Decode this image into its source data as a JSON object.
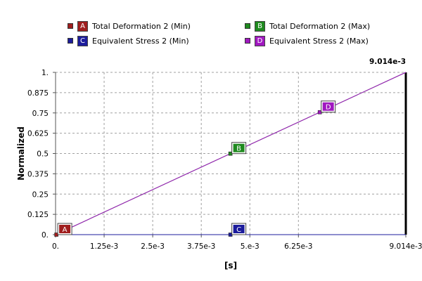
{
  "legend": {
    "items": [
      {
        "letter": "A",
        "label": "Total Deformation 2 (Min)",
        "color": "#a01e1e"
      },
      {
        "letter": "B",
        "label": "Total Deformation 2 (Max)",
        "color": "#1f8a1f"
      },
      {
        "letter": "C",
        "label": "Equivalent Stress 2 (Min)",
        "color": "#1c1c9c"
      },
      {
        "letter": "D",
        "label": "Equivalent Stress 2 (Max)",
        "color": "#a018c0"
      }
    ]
  },
  "chart_data": {
    "type": "line",
    "xlabel": "[s]",
    "ylabel": "Normalized",
    "xlim": [
      0,
      0.009014
    ],
    "ylim": [
      0,
      1
    ],
    "x_ticks": [
      0,
      0.00125,
      0.0025,
      0.00375,
      0.005,
      0.00625,
      0.009014
    ],
    "x_tick_labels": [
      "0.",
      "1.25e-3",
      "2.5e-3",
      "3.75e-3",
      "5.e-3",
      "6.25e-3",
      "9.014e-3"
    ],
    "y_ticks": [
      0,
      0.125,
      0.25,
      0.375,
      0.5,
      0.625,
      0.75,
      0.875,
      1
    ],
    "y_tick_labels": [
      "0.",
      "0.125",
      "0.25",
      "0.375",
      "0.5",
      "0.625",
      "0.75",
      "0.875",
      "1."
    ],
    "grid": true,
    "cursor": {
      "x": 0.009014,
      "label": "9.014e-3"
    },
    "series": [
      {
        "letter": "A",
        "color": "#a01e1e",
        "x": [
          0,
          0.009014
        ],
        "y": [
          0,
          0
        ],
        "marker_x": 2e-05
      },
      {
        "letter": "B",
        "color": "#1f8a1f",
        "x": [
          0,
          0.009014
        ],
        "y": [
          0,
          1
        ],
        "marker_x": 0.0045
      },
      {
        "letter": "C",
        "color": "#1c1c9c",
        "x": [
          0,
          0.009014
        ],
        "y": [
          0,
          0
        ],
        "marker_x": 0.0045
      },
      {
        "letter": "D",
        "color": "#a018c0",
        "x": [
          0,
          0.009014
        ],
        "y": [
          0,
          1
        ],
        "marker_x": 0.0068
      }
    ]
  }
}
